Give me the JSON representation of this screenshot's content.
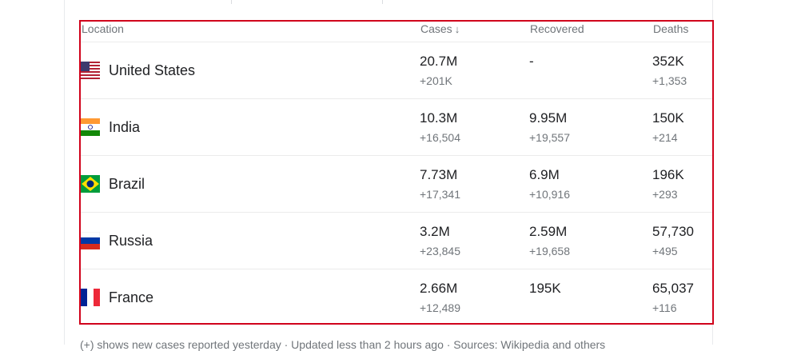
{
  "header": {
    "location": "Location",
    "cases": "Cases",
    "cases_sort_icon": "arrow-down-icon",
    "recovered": "Recovered",
    "deaths": "Deaths"
  },
  "rows": [
    {
      "flag": "us-flag-icon",
      "country": "United States",
      "cases": "20.7M",
      "cases_delta": "+201K",
      "recovered": "-",
      "recovered_delta": "",
      "deaths": "352K",
      "deaths_delta": "+1,353"
    },
    {
      "flag": "india-flag-icon",
      "country": "India",
      "cases": "10.3M",
      "cases_delta": "+16,504",
      "recovered": "9.95M",
      "recovered_delta": "+19,557",
      "deaths": "150K",
      "deaths_delta": "+214"
    },
    {
      "flag": "brazil-flag-icon",
      "country": "Brazil",
      "cases": "7.73M",
      "cases_delta": "+17,341",
      "recovered": "6.9M",
      "recovered_delta": "+10,916",
      "deaths": "196K",
      "deaths_delta": "+293"
    },
    {
      "flag": "russia-flag-icon",
      "country": "Russia",
      "cases": "3.2M",
      "cases_delta": "+23,845",
      "recovered": "2.59M",
      "recovered_delta": "+19,658",
      "deaths": "57,730",
      "deaths_delta": "+495"
    },
    {
      "flag": "france-flag-icon",
      "country": "France",
      "cases": "2.66M",
      "cases_delta": "+12,489",
      "recovered": "195K",
      "recovered_delta": "",
      "deaths": "65,037",
      "deaths_delta": "+116"
    }
  ],
  "footer": "(+) shows new cases reported yesterday · Updated less than 2 hours ago · Sources: Wikipedia and others",
  "colors": {
    "highlight": "#d0021b",
    "text_primary": "#202124",
    "text_secondary": "#70757a"
  }
}
